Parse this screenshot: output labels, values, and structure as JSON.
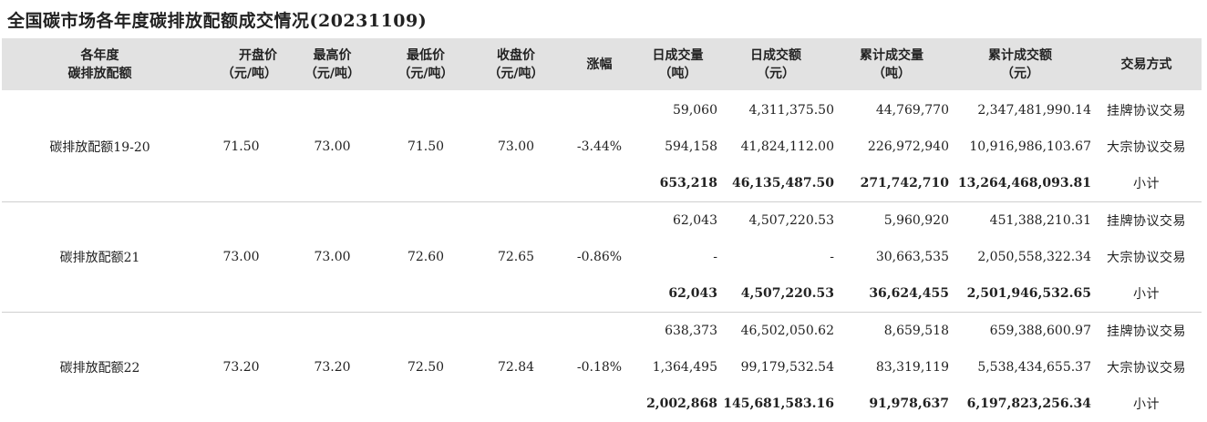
{
  "title": "全国碳市场各年度碳排放配额成交情况(20231109)",
  "headers": {
    "year": [
      "各年度",
      "碳排放配额"
    ],
    "open": [
      "开盘价",
      "（元/吨）"
    ],
    "high": [
      "最高价",
      "（元/吨）"
    ],
    "low": [
      "最低价",
      "（元/吨）"
    ],
    "close": [
      "收盘价",
      "（元/吨）"
    ],
    "change": [
      "涨幅"
    ],
    "day_vol": [
      "日成交量",
      "（吨）"
    ],
    "day_amt": [
      "日成交额",
      "（元）"
    ],
    "cum_vol": [
      "累计成交量",
      "（吨）"
    ],
    "cum_amt": [
      "累计成交额",
      "（元）"
    ],
    "method": [
      "交易方式"
    ]
  },
  "groups": [
    {
      "name": "碳排放配额19-20",
      "open": "71.50",
      "high": "73.00",
      "low": "71.50",
      "close": "73.00",
      "change": "-3.44%",
      "rows": [
        {
          "day_vol": "59,060",
          "day_amt": "4,311,375.50",
          "cum_vol": "44,769,770",
          "cum_amt": "2,347,481,990.14",
          "type": "挂牌协议交易"
        },
        {
          "day_vol": "594,158",
          "day_amt": "41,824,112.00",
          "cum_vol": "226,972,940",
          "cum_amt": "10,916,986,103.67",
          "type": "大宗协议交易"
        },
        {
          "day_vol": "653,218",
          "day_amt": "46,135,487.50",
          "cum_vol": "271,742,710",
          "cum_amt": "13,264,468,093.81",
          "type": "小计"
        }
      ]
    },
    {
      "name": "碳排放配额21",
      "open": "73.00",
      "high": "73.00",
      "low": "72.60",
      "close": "72.65",
      "change": "-0.86%",
      "rows": [
        {
          "day_vol": "62,043",
          "day_amt": "4,507,220.53",
          "cum_vol": "5,960,920",
          "cum_amt": "451,388,210.31",
          "type": "挂牌协议交易"
        },
        {
          "day_vol": "-",
          "day_amt": "-",
          "cum_vol": "30,663,535",
          "cum_amt": "2,050,558,322.34",
          "type": "大宗协议交易"
        },
        {
          "day_vol": "62,043",
          "day_amt": "4,507,220.53",
          "cum_vol": "36,624,455",
          "cum_amt": "2,501,946,532.65",
          "type": "小计"
        }
      ]
    },
    {
      "name": "碳排放配额22",
      "open": "73.20",
      "high": "73.20",
      "low": "72.50",
      "close": "72.84",
      "change": "-0.18%",
      "rows": [
        {
          "day_vol": "638,373",
          "day_amt": "46,502,050.62",
          "cum_vol": "8,659,518",
          "cum_amt": "659,388,600.97",
          "type": "挂牌协议交易"
        },
        {
          "day_vol": "1,364,495",
          "day_amt": "99,179,532.54",
          "cum_vol": "83,319,119",
          "cum_amt": "5,538,434,655.37",
          "type": "大宗协议交易"
        },
        {
          "day_vol": "2,002,868",
          "day_amt": "145,681,583.16",
          "cum_vol": "91,978,637",
          "cum_amt": "6,197,823,256.34",
          "type": "小计"
        }
      ]
    }
  ]
}
